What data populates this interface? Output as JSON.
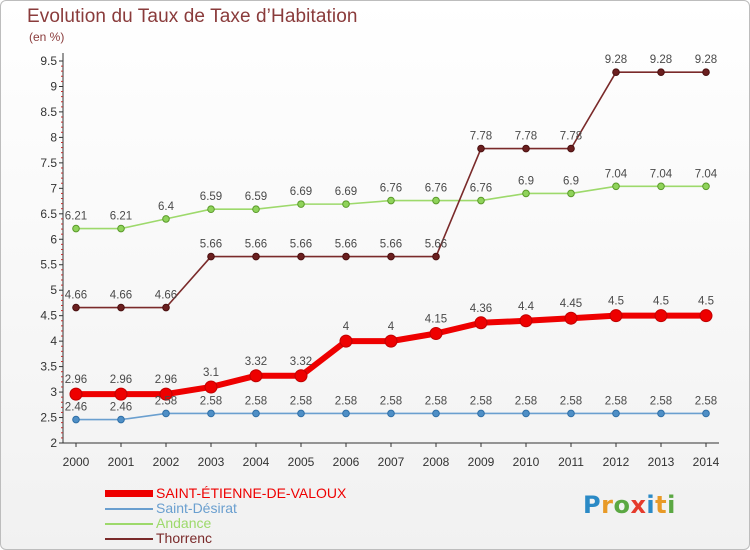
{
  "title": "Evolution du Taux de Taxe d’Habitation",
  "subtitle": "(en %)",
  "logo": {
    "text": "Proxiti",
    "colors": [
      "#2b8ac6",
      "#e89a27",
      "#5ba843",
      "#e53b2c",
      "#2b8ac6",
      "#e89a27",
      "#5ba843"
    ]
  },
  "chart_data": {
    "type": "line",
    "title": "Evolution du Taux de Taxe d’Habitation",
    "ylabel": "(en %)",
    "xlabel": "",
    "x": [
      "2000",
      "2001",
      "2002",
      "2003",
      "2004",
      "2005",
      "2006",
      "2007",
      "2008",
      "2009",
      "2010",
      "2011",
      "2012",
      "2013",
      "2014"
    ],
    "ylim": [
      2,
      9.5
    ],
    "yticks": [
      "2",
      "2.5",
      "3",
      "3.5",
      "4",
      "4.5",
      "5",
      "5.5",
      "6",
      "6.5",
      "7",
      "7.5",
      "8",
      "8.5",
      "9",
      "9.5"
    ],
    "grid": false,
    "legend_position": "bottom-left",
    "series": [
      {
        "name": "SAINT-ÉTIENNE-DE-VALOUX",
        "color": "#ee0000",
        "values": [
          2.96,
          2.96,
          2.96,
          3.1,
          3.32,
          3.32,
          4,
          4,
          4.15,
          4.36,
          4.4,
          4.45,
          4.5,
          4.5,
          4.5
        ],
        "labels": [
          "2.96",
          "2.96",
          "2.96",
          "3.1",
          "3.32",
          "3.32",
          "4",
          "4",
          "4.15",
          "4.36",
          "4.4",
          "4.45",
          "4.5",
          "4.5",
          "4.5"
        ]
      },
      {
        "name": "Saint-Désirat",
        "color": "#6a9fcf",
        "values": [
          2.46,
          2.46,
          2.58,
          2.58,
          2.58,
          2.58,
          2.58,
          2.58,
          2.58,
          2.58,
          2.58,
          2.58,
          2.58,
          2.58,
          2.58
        ],
        "labels": [
          "2.46",
          "2.46",
          "2.58",
          "2.58",
          "2.58",
          "2.58",
          "2.58",
          "2.58",
          "2.58",
          "2.58",
          "2.58",
          "2.58",
          "2.58",
          "2.58",
          "2.58"
        ]
      },
      {
        "name": "Andance",
        "color": "#9dd96b",
        "values": [
          6.21,
          6.21,
          6.4,
          6.59,
          6.59,
          6.69,
          6.69,
          6.76,
          6.76,
          6.76,
          6.9,
          6.9,
          7.04,
          7.04,
          7.04
        ],
        "labels": [
          "6.21",
          "6.21",
          "6.4",
          "6.59",
          "6.59",
          "6.69",
          "6.69",
          "6.76",
          "6.76",
          "6.76",
          "6.9",
          "6.9",
          "7.04",
          "7.04",
          "7.04"
        ]
      },
      {
        "name": "Thorrenc",
        "color": "#7a2a2a",
        "values": [
          4.66,
          4.66,
          4.66,
          5.66,
          5.66,
          5.66,
          5.66,
          5.66,
          5.66,
          7.78,
          7.78,
          7.78,
          9.28,
          9.28,
          9.28
        ],
        "labels": [
          "4.66",
          "4.66",
          "4.66",
          "5.66",
          "5.66",
          "5.66",
          "5.66",
          "5.66",
          "5.66",
          "7.78",
          "7.78",
          "7.78",
          "9.28",
          "9.28",
          "9.28"
        ]
      }
    ]
  }
}
